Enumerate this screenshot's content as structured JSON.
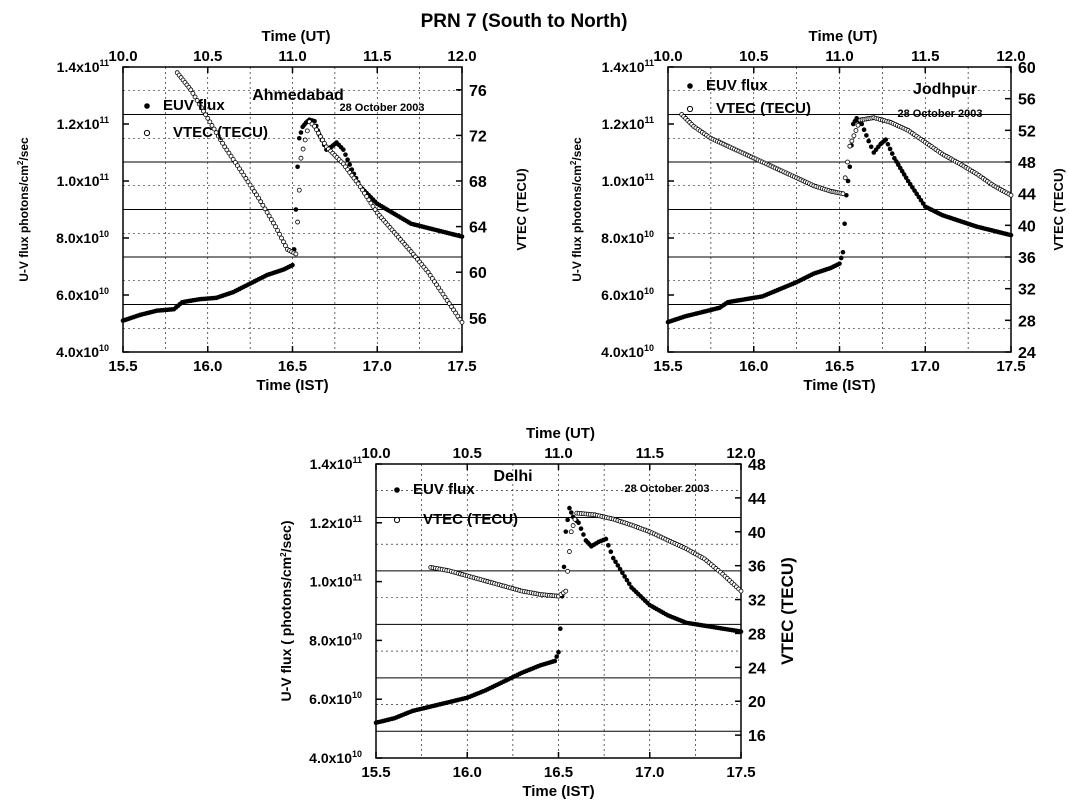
{
  "figure_title": "PRN 7 (South to North)",
  "chart_data": [
    {
      "type": "scatter",
      "id": "ahmedabad",
      "station": "Ahmedabad",
      "date": "28 October 2003",
      "xlabel": "Time (IST)",
      "x2label": "Time (UT)",
      "ylabel": "U-V flux photons/cm²/sec",
      "y2label": "VTEC (TECU)",
      "xlim": [
        15.5,
        17.5
      ],
      "x_ticks": [
        "15.5",
        "16.0",
        "16.5",
        "17.0",
        "17.5"
      ],
      "x2lim": [
        10.0,
        12.0
      ],
      "x2_ticks": [
        "10.0",
        "10.5",
        "11.0",
        "11.5",
        "12.0"
      ],
      "ylim": [
        40000000000,
        140000000000
      ],
      "y_ticks": [
        {
          "v": 40000000000,
          "m": "4.0x10",
          "e": "10"
        },
        {
          "v": 60000000000,
          "m": "6.0x10",
          "e": "10"
        },
        {
          "v": 80000000000,
          "m": "8.0x10",
          "e": "10"
        },
        {
          "v": 100000000000,
          "m": "1.0x10",
          "e": "11"
        },
        {
          "v": 120000000000,
          "m": "1.2x10",
          "e": "11"
        },
        {
          "v": 140000000000,
          "m": "1.4x10",
          "e": "11"
        }
      ],
      "y2lim": [
        53,
        78
      ],
      "y2_ticks": [
        "56",
        "60",
        "64",
        "68",
        "72",
        "76"
      ],
      "grid": true,
      "legend_position": "top-left",
      "series": [
        {
          "name": "EUV flux",
          "axis": "left",
          "marker": "filled",
          "points": [
            [
              15.5,
              51000000000.0
            ],
            [
              15.6,
              53000000000.0
            ],
            [
              15.7,
              54500000000.0
            ],
            [
              15.8,
              55000000000.0
            ],
            [
              15.85,
              57500000000.0
            ],
            [
              15.95,
              58500000000.0
            ],
            [
              16.05,
              59000000000.0
            ],
            [
              16.15,
              61000000000.0
            ],
            [
              16.25,
              64000000000.0
            ],
            [
              16.35,
              67000000000.0
            ],
            [
              16.45,
              69000000000.0
            ],
            [
              16.5,
              70500000000.0
            ],
            [
              16.51,
              76000000000.0
            ],
            [
              16.52,
              90000000000.0
            ],
            [
              16.53,
              105000000000.0
            ],
            [
              16.54,
              115000000000.0
            ],
            [
              16.56,
              119000000000.0
            ],
            [
              16.58,
              120500000000.0
            ],
            [
              16.6,
              121500000000.0
            ],
            [
              16.63,
              121000000000.0
            ],
            [
              16.66,
              116000000000.0
            ],
            [
              16.7,
              111000000000.0
            ],
            [
              16.73,
              112000000000.0
            ],
            [
              16.76,
              113500000000.0
            ],
            [
              16.8,
              111000000000.0
            ],
            [
              16.85,
              104000000000.0
            ],
            [
              16.9,
              98000000000.0
            ],
            [
              17.0,
              92000000000.0
            ],
            [
              17.1,
              88500000000.0
            ],
            [
              17.2,
              85000000000.0
            ],
            [
              17.3,
              83500000000.0
            ],
            [
              17.4,
              82000000000.0
            ],
            [
              17.5,
              80500000000.0
            ]
          ]
        },
        {
          "name": "VTEC (TECU)",
          "axis": "right",
          "marker": "open",
          "points": [
            [
              15.82,
              77.5
            ],
            [
              15.9,
              76
            ],
            [
              16.0,
              73.5
            ],
            [
              16.1,
              71
            ],
            [
              16.2,
              68.8
            ],
            [
              16.3,
              66.5
            ],
            [
              16.4,
              64
            ],
            [
              16.47,
              62
            ],
            [
              16.52,
              61.6
            ],
            [
              16.55,
              70
            ],
            [
              16.6,
              73.2
            ],
            [
              16.63,
              72.8
            ],
            [
              16.7,
              71
            ],
            [
              16.8,
              69.5
            ],
            [
              16.9,
              67.5
            ],
            [
              17.0,
              65.2
            ],
            [
              17.1,
              63.5
            ],
            [
              17.2,
              61.8
            ],
            [
              17.3,
              60
            ],
            [
              17.4,
              57.8
            ],
            [
              17.5,
              55.6
            ]
          ]
        }
      ]
    },
    {
      "type": "scatter",
      "id": "jodhpur",
      "station": "Jodhpur",
      "date": "28 October 2003",
      "xlabel": "Time (IST)",
      "x2label": "Time (UT)",
      "ylabel": "U-V flux photons/cm²/sec",
      "y2label": "VTEC (TECU)",
      "xlim": [
        15.5,
        17.5
      ],
      "x_ticks": [
        "15.5",
        "16.0",
        "16.5",
        "17.0",
        "17.5"
      ],
      "x2lim": [
        10.0,
        12.0
      ],
      "x2_ticks": [
        "10.0",
        "10.5",
        "11.0",
        "11.5",
        "12.0"
      ],
      "ylim": [
        40000000000,
        140000000000
      ],
      "y_ticks": [
        {
          "v": 40000000000,
          "m": "4.0x10",
          "e": "10"
        },
        {
          "v": 60000000000,
          "m": "6.0x10",
          "e": "10"
        },
        {
          "v": 80000000000,
          "m": "8.0x10",
          "e": "10"
        },
        {
          "v": 100000000000,
          "m": "1.0x10",
          "e": "11"
        },
        {
          "v": 120000000000,
          "m": "1.2x10",
          "e": "11"
        },
        {
          "v": 140000000000,
          "m": "1.4x10",
          "e": "11"
        }
      ],
      "y2lim": [
        24,
        60
      ],
      "y2_ticks": [
        "24",
        "28",
        "32",
        "36",
        "40",
        "44",
        "48",
        "52",
        "56",
        "60"
      ],
      "grid": true,
      "legend_position": "top-left",
      "series": [
        {
          "name": "EUV flux",
          "axis": "left",
          "marker": "filled",
          "points": [
            [
              15.5,
              50500000000.0
            ],
            [
              15.6,
              52500000000.0
            ],
            [
              15.7,
              54000000000.0
            ],
            [
              15.8,
              55500000000.0
            ],
            [
              15.85,
              57500000000.0
            ],
            [
              15.95,
              58500000000.0
            ],
            [
              16.05,
              59500000000.0
            ],
            [
              16.15,
              62000000000.0
            ],
            [
              16.25,
              64500000000.0
            ],
            [
              16.35,
              67500000000.0
            ],
            [
              16.45,
              69500000000.0
            ],
            [
              16.5,
              71000000000.0
            ],
            [
              16.52,
              75000000000.0
            ],
            [
              16.53,
              85000000000.0
            ],
            [
              16.54,
              95000000000.0
            ],
            [
              16.56,
              105000000000.0
            ],
            [
              16.58,
              120000000000.0
            ],
            [
              16.6,
              122000000000.0
            ],
            [
              16.63,
              120000000000.0
            ],
            [
              16.67,
              114000000000.0
            ],
            [
              16.7,
              110000000000.0
            ],
            [
              16.74,
              113000000000.0
            ],
            [
              16.77,
              114500000000.0
            ],
            [
              16.82,
              108000000000.0
            ],
            [
              16.9,
              100000000000.0
            ],
            [
              17.0,
              91000000000.0
            ],
            [
              17.1,
              88000000000.0
            ],
            [
              17.2,
              86000000000.0
            ],
            [
              17.3,
              84000000000.0
            ],
            [
              17.4,
              82500000000.0
            ],
            [
              17.5,
              81000000000.0
            ]
          ]
        },
        {
          "name": "VTEC (TECU)",
          "axis": "right",
          "marker": "open",
          "points": [
            [
              15.58,
              54
            ],
            [
              15.65,
              52.5
            ],
            [
              15.75,
              51
            ],
            [
              15.85,
              50
            ],
            [
              15.95,
              49
            ],
            [
              16.05,
              48
            ],
            [
              16.15,
              47
            ],
            [
              16.25,
              46
            ],
            [
              16.35,
              45
            ],
            [
              16.45,
              44.3
            ],
            [
              16.52,
              44
            ],
            [
              16.56,
              50
            ],
            [
              16.62,
              53.3
            ],
            [
              16.7,
              53.6
            ],
            [
              16.8,
              53
            ],
            [
              16.9,
              52
            ],
            [
              17.0,
              50.5
            ],
            [
              17.1,
              49
            ],
            [
              17.2,
              47.8
            ],
            [
              17.3,
              46.5
            ],
            [
              17.4,
              45
            ],
            [
              17.5,
              43.8
            ]
          ]
        }
      ]
    },
    {
      "type": "scatter",
      "id": "delhi",
      "station": "Delhi",
      "date": "28 October 2003",
      "xlabel": "Time (IST)",
      "x2label": "Time (UT)",
      "ylabel": "U-V flux ( photons/cm²/sec)",
      "y2label": "VTEC (TECU)",
      "xlim": [
        15.5,
        17.5
      ],
      "x_ticks": [
        "15.5",
        "16.0",
        "16.5",
        "17.0",
        "17.5"
      ],
      "x2lim": [
        10.0,
        12.0
      ],
      "x2_ticks": [
        "10.0",
        "10.5",
        "11.0",
        "11.5",
        "12.0"
      ],
      "ylim": [
        40000000000,
        140000000000
      ],
      "y_ticks": [
        {
          "v": 40000000000,
          "m": "4.0x10",
          "e": "10"
        },
        {
          "v": 60000000000,
          "m": "6.0x10",
          "e": "10"
        },
        {
          "v": 80000000000,
          "m": "8.0x10",
          "e": "10"
        },
        {
          "v": 100000000000,
          "m": "1.0x10",
          "e": "11"
        },
        {
          "v": 120000000000,
          "m": "1.2x10",
          "e": "11"
        },
        {
          "v": 140000000000,
          "m": "1.4x10",
          "e": "11"
        }
      ],
      "y2lim": [
        13.3,
        48
      ],
      "y2_ticks": [
        "16",
        "20",
        "24",
        "28",
        "32",
        "36",
        "40",
        "44",
        "48"
      ],
      "grid": true,
      "legend_position": "top-left",
      "series": [
        {
          "name": "EUV flux",
          "axis": "left",
          "marker": "filled",
          "points": [
            [
              15.5,
              52000000000.0
            ],
            [
              15.6,
              53500000000.0
            ],
            [
              15.7,
              56000000000.0
            ],
            [
              15.8,
              57500000000.0
            ],
            [
              15.9,
              59000000000.0
            ],
            [
              16.0,
              60500000000.0
            ],
            [
              16.1,
              63000000000.0
            ],
            [
              16.2,
              66000000000.0
            ],
            [
              16.3,
              69000000000.0
            ],
            [
              16.4,
              71500000000.0
            ],
            [
              16.48,
              73000000000.0
            ],
            [
              16.5,
              76000000000.0
            ],
            [
              16.51,
              84000000000.0
            ],
            [
              16.52,
              95000000000.0
            ],
            [
              16.53,
              105000000000.0
            ],
            [
              16.54,
              117000000000.0
            ],
            [
              16.56,
              125000000000.0
            ],
            [
              16.58,
              122000000000.0
            ],
            [
              16.61,
              120000000000.0
            ],
            [
              16.65,
              114000000000.0
            ],
            [
              16.68,
              112000000000.0
            ],
            [
              16.72,
              113500000000.0
            ],
            [
              16.76,
              114500000000.0
            ],
            [
              16.8,
              108000000000.0
            ],
            [
              16.9,
              98000000000.0
            ],
            [
              17.0,
              92000000000.0
            ],
            [
              17.1,
              88500000000.0
            ],
            [
              17.2,
              86000000000.0
            ],
            [
              17.3,
              85000000000.0
            ],
            [
              17.4,
              84000000000.0
            ],
            [
              17.5,
              83000000000.0
            ]
          ]
        },
        {
          "name": "VTEC (TECU)",
          "axis": "right",
          "marker": "open",
          "points": [
            [
              15.8,
              35.8
            ],
            [
              15.9,
              35.4
            ],
            [
              16.0,
              34.8
            ],
            [
              16.1,
              34.2
            ],
            [
              16.2,
              33.6
            ],
            [
              16.3,
              33
            ],
            [
              16.4,
              32.6
            ],
            [
              16.5,
              32.4
            ],
            [
              16.54,
              33
            ],
            [
              16.57,
              40
            ],
            [
              16.6,
              42.2
            ],
            [
              16.7,
              42
            ],
            [
              16.8,
              41.5
            ],
            [
              16.9,
              40.8
            ],
            [
              17.0,
              40
            ],
            [
              17.1,
              39
            ],
            [
              17.2,
              38
            ],
            [
              17.3,
              36.8
            ],
            [
              17.4,
              35
            ],
            [
              17.5,
              33
            ]
          ]
        }
      ]
    }
  ]
}
